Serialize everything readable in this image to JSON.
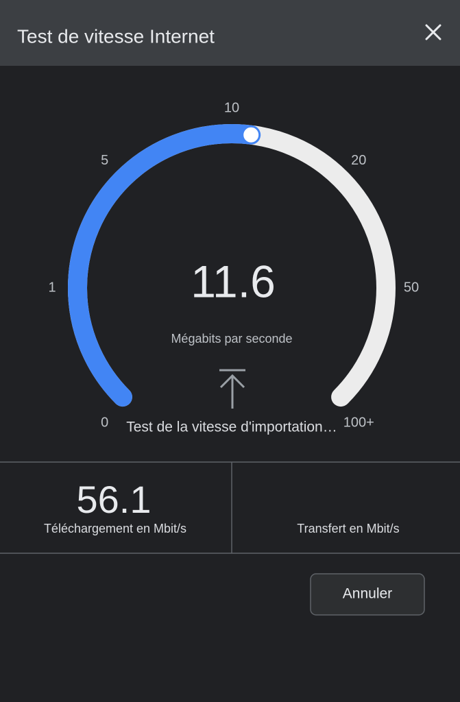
{
  "header": {
    "title": "Test de vitesse Internet"
  },
  "gauge": {
    "ticks": [
      0,
      1,
      5,
      10,
      20,
      50,
      {
        "value": 100,
        "label": "100+"
      }
    ],
    "value": 11.6,
    "unit": "Mégabits par seconde",
    "status": "Test de la vitesse d'importation…"
  },
  "results": {
    "download": {
      "value": 56.1,
      "label": "Téléchargement en Mbit/s"
    },
    "upload": {
      "label": "Transfert en Mbit/s"
    }
  },
  "buttons": {
    "cancel": "Annuler"
  }
}
